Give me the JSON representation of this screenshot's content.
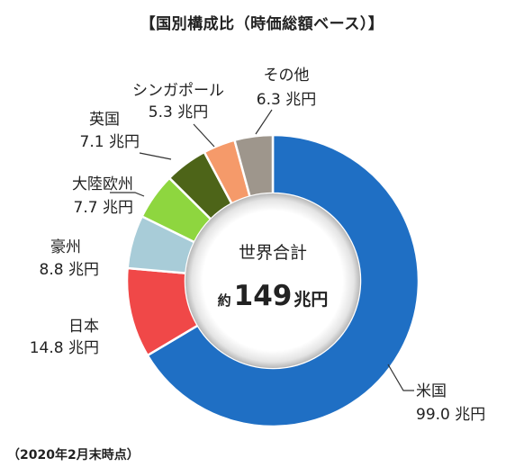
{
  "chart_data": {
    "type": "pie",
    "title": "【国別構成比（時価総額ベース）】",
    "footnote": "（2020年2月末時点）",
    "center": {
      "label": "世界合計",
      "prefix": "約",
      "value": "149",
      "unit": "兆円"
    },
    "slices": [
      {
        "name": "米国",
        "value": 99.0,
        "value_label": "99.0 兆円",
        "color": "#1f6fc4"
      },
      {
        "name": "日本",
        "value": 14.8,
        "value_label": "14.8 兆円",
        "color": "#f04848"
      },
      {
        "name": "豪州",
        "value": 8.8,
        "value_label": "8.8 兆円",
        "color": "#a8ccd8"
      },
      {
        "name": "大陸欧州",
        "value": 7.7,
        "value_label": "7.7 兆円",
        "color": "#8ed63f"
      },
      {
        "name": "英国",
        "value": 7.1,
        "value_label": "7.1 兆円",
        "color": "#4d6418"
      },
      {
        "name": "シンガポール",
        "value": 5.3,
        "value_label": "5.3 兆円",
        "color": "#f59a6a"
      },
      {
        "name": "その他",
        "value": 6.3,
        "value_label": "6.3 兆円",
        "color": "#9e968c"
      }
    ]
  }
}
